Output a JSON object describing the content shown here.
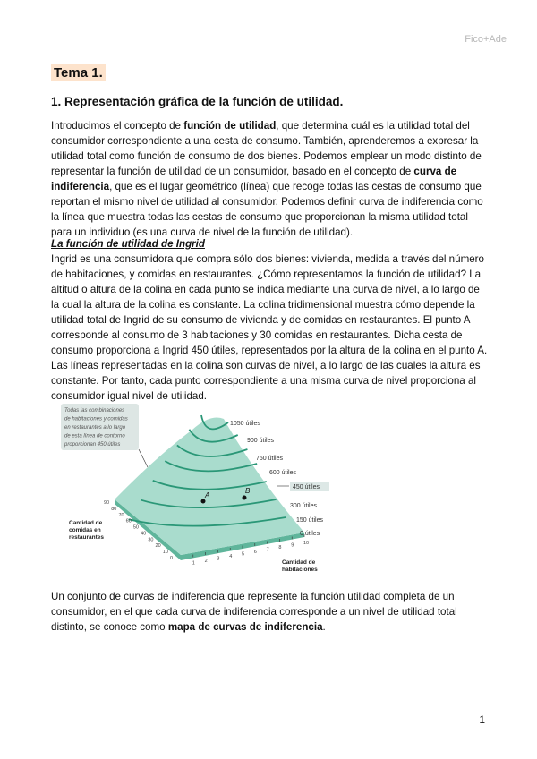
{
  "header": {
    "right": "Fico+Ade"
  },
  "title": "Tema 1.",
  "section_heading": "1. Representación gráfica de la función de utilidad.",
  "para1": {
    "t1": "Introducimos el concepto de ",
    "b1": "función de utilidad",
    "t2": ", que determina cuál es la utilidad total del consumidor correspondiente a una cesta de consumo. También, aprenderemos a expresar la utilidad total como función de consumo de dos bienes. Podemos emplear un modo distinto de representar la función de utilidad de un consumidor, basado en el concepto de ",
    "b2": "curva de indiferencia",
    "t3": ", que es el lugar geométrico (línea) que recoge todas las cestas de consumo que reportan el mismo nivel de utilidad al consumidor. Podemos definir curva de indiferencia como la línea que muestra todas las cestas de consumo que proporcionan la misma utilidad total para un individuo (es una curva de nivel de la función de utilidad)."
  },
  "subheading": "La función de utilidad de Ingrid",
  "para2": "Ingrid es una consumidora que compra sólo dos bienes: vivienda, medida a través del número de habitaciones, y comidas en restaurantes. ¿Cómo representamos la función de utilidad? La altitud o altura de la colina en cada punto se indica mediante una curva de nivel, a lo largo de la cual la altura de la colina es constante. La colina tridimensional muestra cómo depende la utilidad total de Ingrid de su consumo de vivienda y de comidas en restaurantes. El punto A corresponde al consumo de 3 habitaciones y 30 comidas en restaurantes. Dicha cesta de consumo proporciona a Ingrid 450 útiles, representados por la altura de la colina en el punto A. Las líneas representadas en la colina son curvas de nivel, a lo largo de las cuales la altura es constante. Por tanto, cada punto correspondiente a una misma curva de nivel proporciona al consumidor igual nivel de utilidad.",
  "figure": {
    "callout": [
      "Todas las combinaciones",
      "de habitaciones y comidas",
      "en restaurantes a lo largo",
      "de esta línea de contorno",
      "proporcionan 450 útiles"
    ],
    "levels": [
      "1050 útiles",
      "900 útiles",
      "750 útiles",
      "600 útiles",
      "450 útiles",
      "300 útiles",
      "150 útiles",
      "0 útiles"
    ],
    "point_a": "A",
    "point_b": "B",
    "y_axis_label": [
      "Cantidad de",
      "comidas en",
      "restaurantes"
    ],
    "x_axis_label": [
      "Cantidad de",
      "habitaciones"
    ],
    "y_ticks": [
      "90",
      "80",
      "70",
      "60",
      "50",
      "40",
      "30",
      "20",
      "10",
      "0"
    ],
    "x_ticks": [
      "1",
      "2",
      "3",
      "4",
      "5",
      "6",
      "7",
      "8",
      "9",
      "10"
    ],
    "colors": {
      "surface": "#a9dccd",
      "contour": "#2a9777",
      "base": "#5fb59b"
    }
  },
  "para3": {
    "t1": "Un conjunto de curvas de indiferencia que represente la función utilidad completa de un consumidor, en el que cada curva de indiferencia corresponde a un nivel de utilidad total distinto, se conoce como ",
    "b1": "mapa de curvas de indiferencia",
    "t2": "."
  },
  "page_number": "1"
}
